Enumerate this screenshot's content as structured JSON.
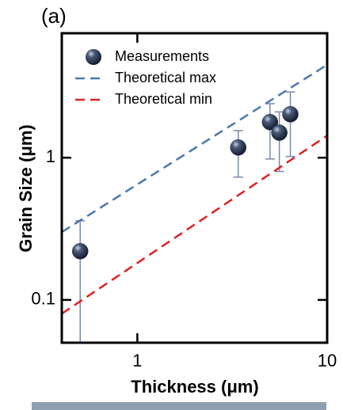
{
  "chart_data": {
    "type": "scatter",
    "title": "(a)",
    "x_label": "Thickness (μm)",
    "y_label": "Grain Size (μm)",
    "xscale": "log",
    "yscale": "log",
    "xlim": [
      0.4,
      10
    ],
    "ylim": [
      0.05,
      7.5
    ],
    "xticks": [
      1,
      10
    ],
    "yticks": [
      0.1,
      1
    ],
    "legend": "upper left",
    "series": [
      {
        "name": "Measurements",
        "color": "#1c2a44",
        "marker": "sphere",
        "error_color": "#7a8aa8",
        "x": [
          0.5,
          3.4,
          5.0,
          5.6,
          6.4
        ],
        "values": [
          0.22,
          1.18,
          1.78,
          1.5,
          2.02
        ],
        "err_low": [
          0.17,
          0.45,
          0.8,
          0.7,
          1.0
        ],
        "err_high": [
          0.14,
          0.37,
          0.62,
          0.6,
          0.88
        ]
      },
      {
        "name": "Theoretical max",
        "color": "#4a78b0",
        "linestyle": "dashed",
        "x": [
          0.4,
          10
        ],
        "values": [
          0.3,
          4.5
        ]
      },
      {
        "name": "Theoretical min",
        "color": "#e02020",
        "linestyle": "dashed",
        "x": [
          0.4,
          10
        ],
        "values": [
          0.08,
          1.43
        ]
      }
    ]
  }
}
